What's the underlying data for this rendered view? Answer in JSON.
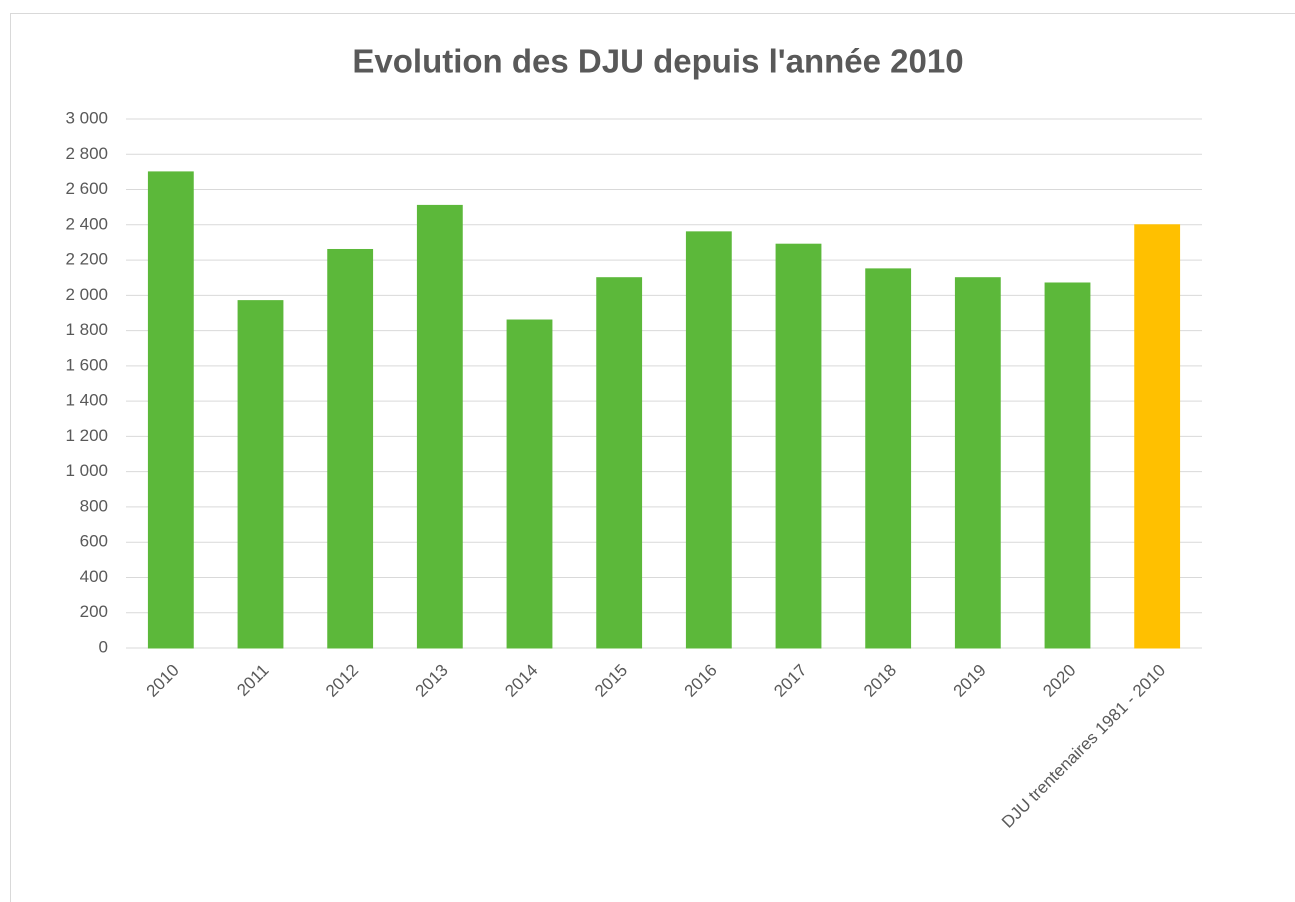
{
  "chart_data": {
    "type": "bar",
    "title": "Evolution des DJU depuis l'année 2010",
    "categories": [
      "2010",
      "2011",
      "2012",
      "2013",
      "2014",
      "2015",
      "2016",
      "2017",
      "2018",
      "2019",
      "2020",
      "DJU trentenaires 1981 - 2010"
    ],
    "values": [
      2700,
      1970,
      2260,
      2510,
      1860,
      2100,
      2360,
      2290,
      2150,
      2100,
      2070,
      2400
    ],
    "colors": [
      "#5cb83a",
      "#5cb83a",
      "#5cb83a",
      "#5cb83a",
      "#5cb83a",
      "#5cb83a",
      "#5cb83a",
      "#5cb83a",
      "#5cb83a",
      "#5cb83a",
      "#5cb83a",
      "#ffc000"
    ],
    "ylim": [
      0,
      3000
    ],
    "yticks": [
      0,
      200,
      400,
      600,
      800,
      {
        "value": 1000,
        "label": "1 000"
      },
      {
        "value": 1200,
        "label": "1 200"
      },
      {
        "value": 1400,
        "label": "1 400"
      },
      {
        "value": 1600,
        "label": "1 600"
      },
      {
        "value": 1800,
        "label": "1 800"
      },
      {
        "value": 2000,
        "label": "2 000"
      },
      {
        "value": 2200,
        "label": "2 200"
      },
      {
        "value": 2400,
        "label": "2 400"
      },
      {
        "value": 2600,
        "label": "2 600"
      },
      {
        "value": 2800,
        "label": "2 800"
      },
      {
        "value": 3000,
        "label": "3 000"
      }
    ],
    "grid": true
  }
}
